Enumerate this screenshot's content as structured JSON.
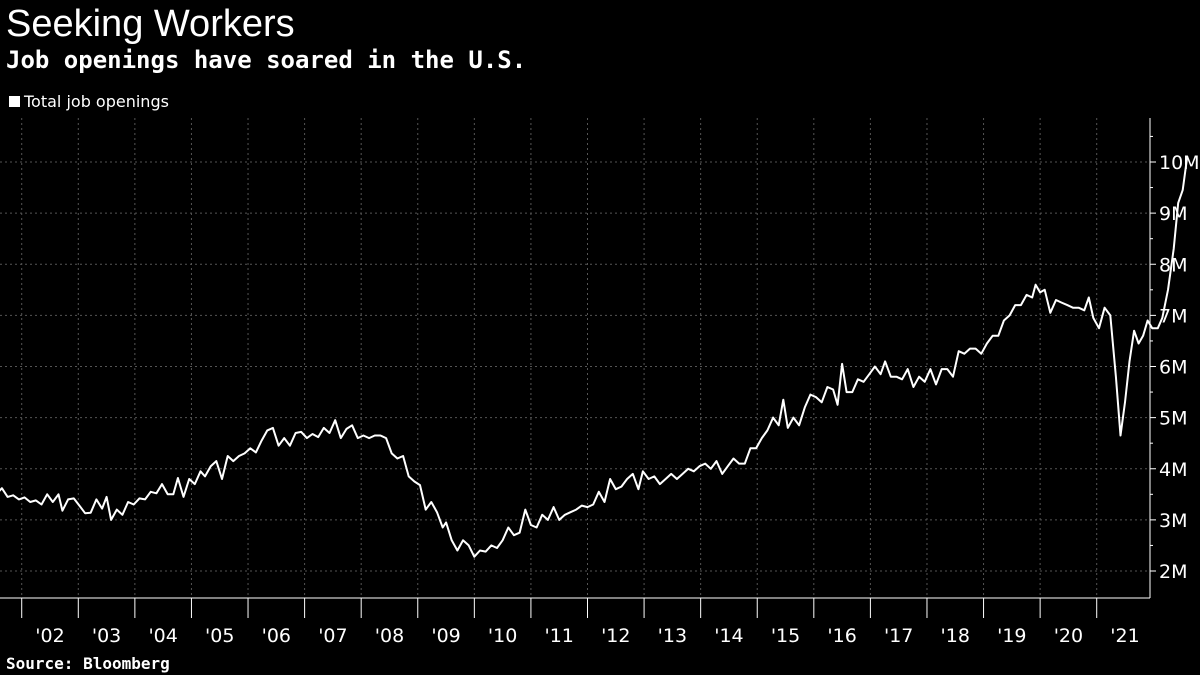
{
  "title": "Seeking Workers",
  "subtitle": "Job openings have soared in the U.S.",
  "source": "Source: Bloomberg",
  "colors": {
    "background": "#000000",
    "line": "#ffffff",
    "grid": "#555555",
    "text": "#ffffff"
  },
  "chart_data": {
    "type": "line",
    "title": "Seeking Workers",
    "subtitle": "Job openings have soared in the U.S.",
    "legend_position": "top-left",
    "grid": true,
    "xlim": [
      2001.0,
      2021.83
    ],
    "ylim": [
      1.5,
      10.9
    ],
    "x_ticks": [
      {
        "value": 2002.5,
        "label": "'02"
      },
      {
        "value": 2003.5,
        "label": "'03"
      },
      {
        "value": 2004.5,
        "label": "'04"
      },
      {
        "value": 2005.5,
        "label": "'05"
      },
      {
        "value": 2006.5,
        "label": "'06"
      },
      {
        "value": 2007.5,
        "label": "'07"
      },
      {
        "value": 2008.5,
        "label": "'08"
      },
      {
        "value": 2009.5,
        "label": "'09"
      },
      {
        "value": 2010.5,
        "label": "'10"
      },
      {
        "value": 2011.5,
        "label": "'11"
      },
      {
        "value": 2012.5,
        "label": "'12"
      },
      {
        "value": 2013.5,
        "label": "'13"
      },
      {
        "value": 2014.5,
        "label": "'14"
      },
      {
        "value": 2015.5,
        "label": "'15"
      },
      {
        "value": 2016.5,
        "label": "'16"
      },
      {
        "value": 2017.5,
        "label": "'17"
      },
      {
        "value": 2018.5,
        "label": "'18"
      },
      {
        "value": 2019.5,
        "label": "'19"
      },
      {
        "value": 2020.5,
        "label": "'20"
      },
      {
        "value": 2021.5,
        "label": "'21"
      }
    ],
    "y_ticks": [
      {
        "value": 2,
        "label": "2M"
      },
      {
        "value": 3,
        "label": "3M"
      },
      {
        "value": 4,
        "label": "4M"
      },
      {
        "value": 5,
        "label": "5M"
      },
      {
        "value": 6,
        "label": "6M"
      },
      {
        "value": 7,
        "label": "7M"
      },
      {
        "value": 8,
        "label": "8M"
      },
      {
        "value": 9,
        "label": "9M"
      },
      {
        "value": 10,
        "label": "10M"
      }
    ],
    "series": [
      {
        "name": "Total job openings",
        "points": [
          [
            2001.0,
            4.0
          ],
          [
            2001.1,
            4.05
          ],
          [
            2001.16,
            3.72
          ],
          [
            2001.26,
            3.78
          ],
          [
            2001.35,
            3.7
          ],
          [
            2001.45,
            3.72
          ],
          [
            2001.55,
            3.5
          ],
          [
            2001.65,
            3.62
          ],
          [
            2001.75,
            3.45
          ],
          [
            2001.85,
            3.48
          ],
          [
            2001.95,
            3.4
          ],
          [
            2002.05,
            3.44
          ],
          [
            2002.15,
            3.35
          ],
          [
            2002.25,
            3.38
          ],
          [
            2002.35,
            3.3
          ],
          [
            2002.45,
            3.5
          ],
          [
            2002.55,
            3.35
          ],
          [
            2002.65,
            3.5
          ],
          [
            2002.72,
            3.18
          ],
          [
            2002.82,
            3.4
          ],
          [
            2002.92,
            3.42
          ],
          [
            2003.02,
            3.28
          ],
          [
            2003.12,
            3.13
          ],
          [
            2003.22,
            3.14
          ],
          [
            2003.32,
            3.4
          ],
          [
            2003.42,
            3.22
          ],
          [
            2003.5,
            3.45
          ],
          [
            2003.58,
            3.0
          ],
          [
            2003.68,
            3.2
          ],
          [
            2003.78,
            3.1
          ],
          [
            2003.88,
            3.35
          ],
          [
            2003.98,
            3.3
          ],
          [
            2004.08,
            3.42
          ],
          [
            2004.18,
            3.4
          ],
          [
            2004.28,
            3.55
          ],
          [
            2004.38,
            3.52
          ],
          [
            2004.48,
            3.7
          ],
          [
            2004.58,
            3.5
          ],
          [
            2004.68,
            3.5
          ],
          [
            2004.76,
            3.82
          ],
          [
            2004.86,
            3.45
          ],
          [
            2004.96,
            3.8
          ],
          [
            2005.06,
            3.7
          ],
          [
            2005.16,
            3.95
          ],
          [
            2005.24,
            3.85
          ],
          [
            2005.34,
            4.05
          ],
          [
            2005.44,
            4.15
          ],
          [
            2005.54,
            3.8
          ],
          [
            2005.64,
            4.25
          ],
          [
            2005.74,
            4.15
          ],
          [
            2005.84,
            4.25
          ],
          [
            2005.94,
            4.3
          ],
          [
            2006.04,
            4.4
          ],
          [
            2006.14,
            4.32
          ],
          [
            2006.24,
            4.55
          ],
          [
            2006.34,
            4.75
          ],
          [
            2006.44,
            4.8
          ],
          [
            2006.54,
            4.45
          ],
          [
            2006.64,
            4.6
          ],
          [
            2006.74,
            4.45
          ],
          [
            2006.84,
            4.7
          ],
          [
            2006.94,
            4.72
          ],
          [
            2007.04,
            4.6
          ],
          [
            2007.14,
            4.68
          ],
          [
            2007.24,
            4.62
          ],
          [
            2007.34,
            4.8
          ],
          [
            2007.44,
            4.7
          ],
          [
            2007.54,
            4.95
          ],
          [
            2007.64,
            4.6
          ],
          [
            2007.74,
            4.78
          ],
          [
            2007.84,
            4.85
          ],
          [
            2007.94,
            4.6
          ],
          [
            2008.04,
            4.65
          ],
          [
            2008.14,
            4.6
          ],
          [
            2008.24,
            4.65
          ],
          [
            2008.34,
            4.65
          ],
          [
            2008.44,
            4.6
          ],
          [
            2008.54,
            4.3
          ],
          [
            2008.64,
            4.2
          ],
          [
            2008.74,
            4.25
          ],
          [
            2008.84,
            3.85
          ],
          [
            2008.94,
            3.75
          ],
          [
            2009.04,
            3.68
          ],
          [
            2009.14,
            3.2
          ],
          [
            2009.24,
            3.35
          ],
          [
            2009.34,
            3.15
          ],
          [
            2009.44,
            2.85
          ],
          [
            2009.5,
            2.95
          ],
          [
            2009.6,
            2.6
          ],
          [
            2009.7,
            2.4
          ],
          [
            2009.8,
            2.6
          ],
          [
            2009.9,
            2.5
          ],
          [
            2010.0,
            2.28
          ],
          [
            2010.1,
            2.4
          ],
          [
            2010.2,
            2.38
          ],
          [
            2010.3,
            2.5
          ],
          [
            2010.4,
            2.45
          ],
          [
            2010.5,
            2.6
          ],
          [
            2010.6,
            2.85
          ],
          [
            2010.7,
            2.7
          ],
          [
            2010.8,
            2.75
          ],
          [
            2010.9,
            3.2
          ],
          [
            2011.0,
            2.9
          ],
          [
            2011.1,
            2.85
          ],
          [
            2011.2,
            3.1
          ],
          [
            2011.3,
            3.0
          ],
          [
            2011.4,
            3.25
          ],
          [
            2011.5,
            3.0
          ],
          [
            2011.6,
            3.1
          ],
          [
            2011.7,
            3.15
          ],
          [
            2011.8,
            3.2
          ],
          [
            2011.9,
            3.28
          ],
          [
            2012.0,
            3.25
          ],
          [
            2012.1,
            3.3
          ],
          [
            2012.2,
            3.55
          ],
          [
            2012.3,
            3.35
          ],
          [
            2012.4,
            3.8
          ],
          [
            2012.5,
            3.6
          ],
          [
            2012.6,
            3.65
          ],
          [
            2012.7,
            3.8
          ],
          [
            2012.8,
            3.9
          ],
          [
            2012.9,
            3.6
          ],
          [
            2012.98,
            3.95
          ],
          [
            2013.08,
            3.8
          ],
          [
            2013.18,
            3.85
          ],
          [
            2013.28,
            3.7
          ],
          [
            2013.38,
            3.8
          ],
          [
            2013.48,
            3.9
          ],
          [
            2013.58,
            3.8
          ],
          [
            2013.68,
            3.9
          ],
          [
            2013.78,
            4.0
          ],
          [
            2013.88,
            3.95
          ],
          [
            2013.98,
            4.05
          ],
          [
            2014.08,
            4.1
          ],
          [
            2014.18,
            4.0
          ],
          [
            2014.28,
            4.15
          ],
          [
            2014.38,
            3.9
          ],
          [
            2014.48,
            4.05
          ],
          [
            2014.58,
            4.2
          ],
          [
            2014.68,
            4.1
          ],
          [
            2014.78,
            4.1
          ],
          [
            2014.88,
            4.4
          ],
          [
            2014.98,
            4.4
          ],
          [
            2015.08,
            4.6
          ],
          [
            2015.18,
            4.75
          ],
          [
            2015.28,
            5.0
          ],
          [
            2015.38,
            4.85
          ],
          [
            2015.46,
            5.35
          ],
          [
            2015.54,
            4.8
          ],
          [
            2015.64,
            5.0
          ],
          [
            2015.74,
            4.85
          ],
          [
            2015.84,
            5.2
          ],
          [
            2015.94,
            5.45
          ],
          [
            2016.04,
            5.4
          ],
          [
            2016.14,
            5.3
          ],
          [
            2016.24,
            5.6
          ],
          [
            2016.34,
            5.55
          ],
          [
            2016.42,
            5.25
          ],
          [
            2016.5,
            6.05
          ],
          [
            2016.58,
            5.5
          ],
          [
            2016.68,
            5.5
          ],
          [
            2016.78,
            5.75
          ],
          [
            2016.88,
            5.7
          ],
          [
            2016.98,
            5.85
          ],
          [
            2017.08,
            6.0
          ],
          [
            2017.18,
            5.85
          ],
          [
            2017.26,
            6.1
          ],
          [
            2017.36,
            5.8
          ],
          [
            2017.46,
            5.8
          ],
          [
            2017.56,
            5.75
          ],
          [
            2017.66,
            5.95
          ],
          [
            2017.76,
            5.6
          ],
          [
            2017.86,
            5.8
          ],
          [
            2017.96,
            5.7
          ],
          [
            2018.06,
            5.95
          ],
          [
            2018.16,
            5.65
          ],
          [
            2018.26,
            5.95
          ],
          [
            2018.36,
            5.95
          ],
          [
            2018.46,
            5.8
          ],
          [
            2018.56,
            6.3
          ],
          [
            2018.66,
            6.25
          ],
          [
            2018.76,
            6.35
          ],
          [
            2018.86,
            6.35
          ],
          [
            2018.96,
            6.25
          ],
          [
            2019.06,
            6.45
          ],
          [
            2019.16,
            6.6
          ],
          [
            2019.26,
            6.6
          ],
          [
            2019.36,
            6.9
          ],
          [
            2019.46,
            7.0
          ],
          [
            2019.56,
            7.2
          ],
          [
            2019.66,
            7.2
          ],
          [
            2019.76,
            7.4
          ],
          [
            2019.86,
            7.35
          ],
          [
            2019.92,
            7.6
          ],
          [
            2020.0,
            7.45
          ],
          [
            2020.08,
            7.5
          ],
          [
            2020.18,
            7.05
          ],
          [
            2020.28,
            7.3
          ],
          [
            2020.38,
            7.25
          ],
          [
            2020.48,
            7.2
          ],
          [
            2020.58,
            7.15
          ],
          [
            2020.68,
            7.15
          ],
          [
            2020.78,
            7.1
          ],
          [
            2020.86,
            7.35
          ],
          [
            2020.94,
            6.95
          ],
          [
            2021.04,
            6.75
          ],
          [
            2021.14,
            7.15
          ],
          [
            2021.24,
            7.0
          ],
          [
            2021.34,
            5.8
          ],
          [
            2021.42,
            4.65
          ],
          [
            2021.5,
            5.3
          ],
          [
            2021.58,
            6.1
          ],
          [
            2021.66,
            6.7
          ],
          [
            2021.74,
            6.45
          ],
          [
            2021.82,
            6.6
          ],
          [
            2021.9,
            6.9
          ],
          [
            2021.98,
            6.75
          ],
          [
            2022.08,
            6.75
          ],
          [
            2022.16,
            6.95
          ],
          [
            2022.26,
            7.5
          ],
          [
            2022.36,
            8.3
          ],
          [
            2022.44,
            9.2
          ],
          [
            2022.52,
            9.45
          ],
          [
            2022.6,
            10.1
          ]
        ]
      }
    ]
  }
}
